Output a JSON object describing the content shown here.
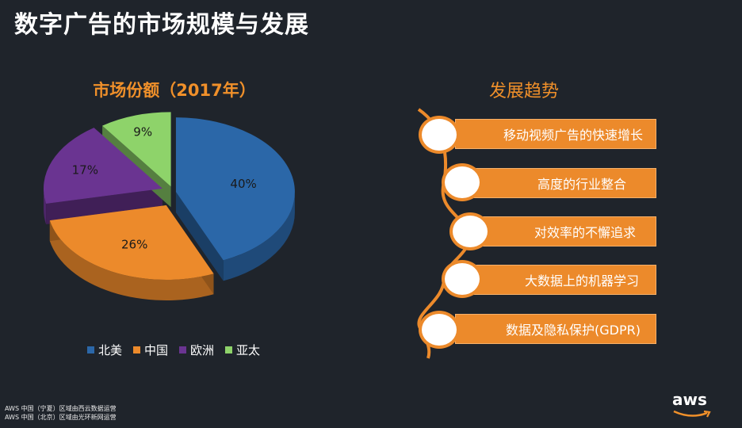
{
  "slide": {
    "title": "数字广告的市场规模与发展",
    "footer_lines": [
      "AWS 中国（宁夏）区域由西云数据运营",
      "AWS 中国（北京）区域由光环新网运营"
    ],
    "logo_text": "aws"
  },
  "chart_data": {
    "type": "pie",
    "title": "市场份额（2017年）",
    "categories": [
      "北美",
      "中国",
      "欧洲",
      "亚太"
    ],
    "values": [
      40,
      26,
      17,
      9
    ],
    "labels": [
      "40%",
      "26%",
      "17%",
      "9%"
    ],
    "colors": [
      "#2b67a8",
      "#ec8a2b",
      "#6a3491",
      "#8ed36a"
    ],
    "legend_position": "bottom",
    "style": "3d-exploded"
  },
  "trends": {
    "title": "发展趋势",
    "items": [
      {
        "label": "移动视频广告的快速增长"
      },
      {
        "label": "高度的行业整合"
      },
      {
        "label": "对效率的不懈追求"
      },
      {
        "label": "大数据上的机器学习"
      },
      {
        "label": "数据及隐私保护(GDPR)"
      }
    ],
    "accent_color": "#ec8a2b"
  }
}
